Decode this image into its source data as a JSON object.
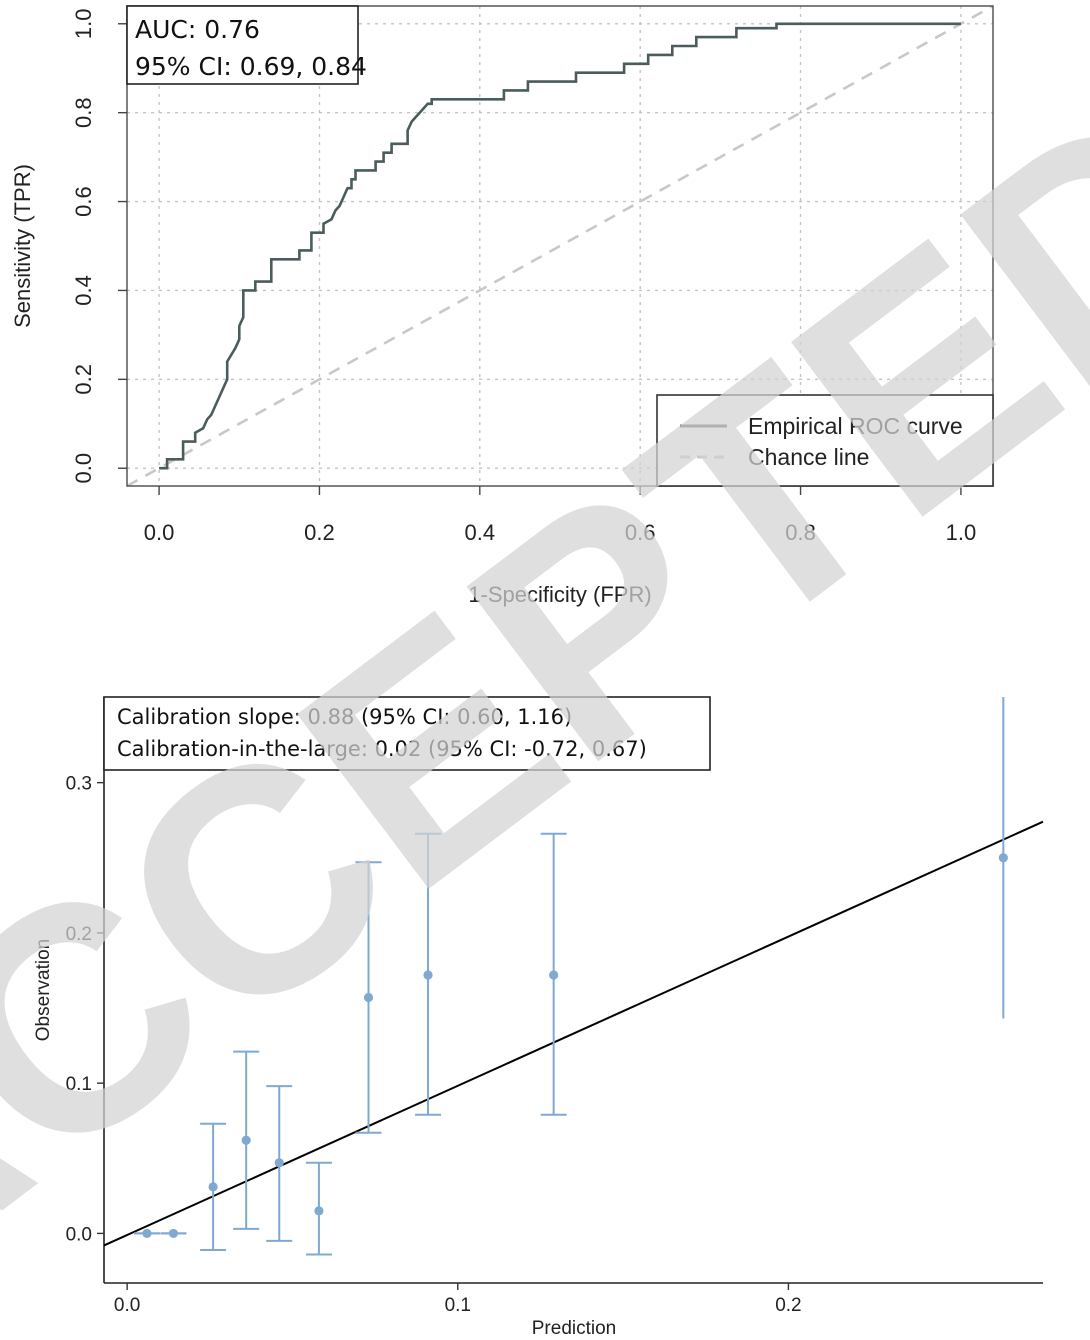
{
  "watermark": "ACCEPTED",
  "colors": {
    "roc": "#4a5c5c",
    "chance": "#c8c8c8",
    "grid": "#c4c4c4",
    "calib_points": "#7fa9d0",
    "calib_line": "#000000",
    "watermark": "#d3d3d3"
  },
  "chart_data": [
    {
      "type": "line",
      "xlabel": "1-Specificity (FPR)",
      "ylabel": "Sensitivity (TPR)",
      "xlim": [
        -0.04,
        1.04
      ],
      "ylim": [
        -0.04,
        1.04
      ],
      "x_ticks": [
        "0.0",
        "0.2",
        "0.4",
        "0.6",
        "0.8",
        "1.0"
      ],
      "y_ticks": [
        "0.0",
        "0.2",
        "0.4",
        "0.6",
        "0.8",
        "1.0"
      ],
      "grid": true,
      "annotation": [
        "AUC: 0.76",
        "95% CI: 0.69, 0.84"
      ],
      "legend": {
        "position": "bottom-right",
        "entries": [
          "Empirical ROC curve",
          "Chance line"
        ]
      },
      "series": [
        {
          "name": "Empirical ROC curve",
          "style": "solid",
          "x": [
            0,
            0.01,
            0.01,
            0.03,
            0.03,
            0.045,
            0.045,
            0.055,
            0.06,
            0.065,
            0.07,
            0.075,
            0.08,
            0.085,
            0.085,
            0.095,
            0.1,
            0.1,
            0.105,
            0.105,
            0.12,
            0.12,
            0.14,
            0.14,
            0.175,
            0.175,
            0.19,
            0.19,
            0.205,
            0.205,
            0.215,
            0.22,
            0.225,
            0.23,
            0.235,
            0.24,
            0.24,
            0.245,
            0.245,
            0.27,
            0.27,
            0.28,
            0.28,
            0.29,
            0.29,
            0.31,
            0.31,
            0.315,
            0.32,
            0.325,
            0.33,
            0.335,
            0.34,
            0.34,
            0.43,
            0.43,
            0.46,
            0.46,
            0.52,
            0.52,
            0.58,
            0.58,
            0.61,
            0.61,
            0.64,
            0.64,
            0.67,
            0.67,
            0.72,
            0.72,
            0.77,
            0.77,
            1.0
          ],
          "y": [
            0,
            0,
            0.02,
            0.02,
            0.06,
            0.06,
            0.08,
            0.09,
            0.11,
            0.12,
            0.14,
            0.16,
            0.18,
            0.2,
            0.24,
            0.27,
            0.29,
            0.32,
            0.34,
            0.4,
            0.4,
            0.42,
            0.42,
            0.47,
            0.47,
            0.49,
            0.49,
            0.53,
            0.53,
            0.55,
            0.56,
            0.58,
            0.59,
            0.61,
            0.63,
            0.63,
            0.65,
            0.65,
            0.67,
            0.67,
            0.69,
            0.69,
            0.71,
            0.71,
            0.73,
            0.73,
            0.76,
            0.78,
            0.79,
            0.8,
            0.81,
            0.82,
            0.82,
            0.83,
            0.83,
            0.85,
            0.85,
            0.87,
            0.87,
            0.89,
            0.89,
            0.91,
            0.91,
            0.93,
            0.93,
            0.95,
            0.95,
            0.97,
            0.97,
            0.99,
            0.99,
            1.0,
            1.0
          ]
        },
        {
          "name": "Chance line",
          "style": "dashed",
          "x": [
            -0.04,
            1.04
          ],
          "y": [
            -0.04,
            1.04
          ]
        }
      ]
    },
    {
      "type": "scatter",
      "xlabel": "Prediction",
      "ylabel": "Observation",
      "xlim": [
        -0.007,
        0.277
      ],
      "ylim": [
        -0.033,
        0.357
      ],
      "x_ticks": [
        "0.0",
        "0.1",
        "0.2"
      ],
      "y_ticks": [
        "0.0",
        "0.1",
        "0.2",
        "0.3"
      ],
      "grid": false,
      "annotation": [
        "Calibration slope: 0.88 (95% CI: 0.60, 1.16)",
        "Calibration-in-the-large: 0.02 (95% CI: -0.72, 0.67)"
      ],
      "points": [
        {
          "x": 0.006,
          "y": 0.0,
          "lo": 0.0,
          "hi": 0.0
        },
        {
          "x": 0.014,
          "y": 0.0,
          "lo": 0.0,
          "hi": 0.0
        },
        {
          "x": 0.026,
          "y": 0.031,
          "lo": -0.011,
          "hi": 0.073
        },
        {
          "x": 0.036,
          "y": 0.062,
          "lo": 0.003,
          "hi": 0.121
        },
        {
          "x": 0.046,
          "y": 0.047,
          "lo": -0.005,
          "hi": 0.098
        },
        {
          "x": 0.058,
          "y": 0.015,
          "lo": -0.014,
          "hi": 0.047
        },
        {
          "x": 0.073,
          "y": 0.157,
          "lo": 0.067,
          "hi": 0.247
        },
        {
          "x": 0.091,
          "y": 0.172,
          "lo": 0.079,
          "hi": 0.266
        },
        {
          "x": 0.129,
          "y": 0.172,
          "lo": 0.079,
          "hi": 0.266
        },
        {
          "x": 0.265,
          "y": 0.25,
          "lo": 0.143,
          "hi": 0.357
        }
      ],
      "fit_line": {
        "x": [
          -0.007,
          0.277
        ],
        "y": [
          -0.008,
          0.274
        ]
      }
    }
  ]
}
